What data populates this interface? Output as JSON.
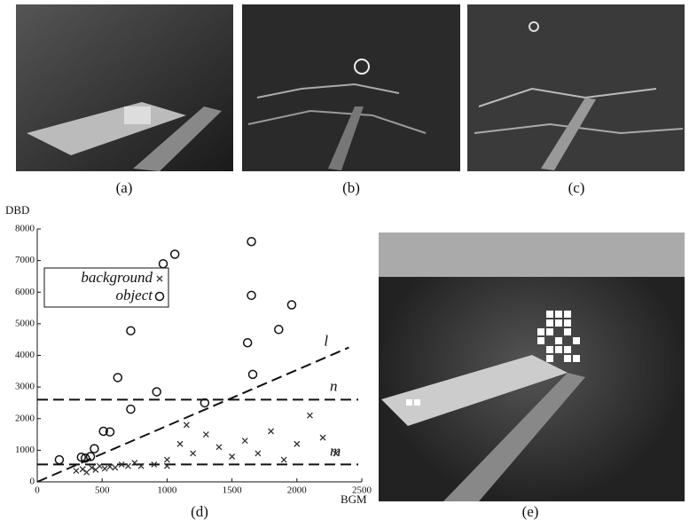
{
  "panels": [
    {
      "label": "(a)"
    },
    {
      "label": "(b)"
    },
    {
      "label": "(c)"
    },
    {
      "label": "(e)"
    }
  ],
  "chart_data": {
    "type": "scatter",
    "caption": "(d)",
    "x_label": "BGM",
    "y_label": "DBD",
    "xlim": [
      0,
      2500
    ],
    "xticks": [
      0,
      500,
      1000,
      1500,
      2000,
      2500
    ],
    "ylim": [
      0,
      8000
    ],
    "yticks": [
      0,
      1000,
      2000,
      3000,
      4000,
      5000,
      6000,
      7000,
      8000
    ],
    "series": [
      {
        "name": "background",
        "marker": "x",
        "color": "#333333",
        "x": [
          300,
          350,
          380,
          420,
          450,
          480,
          520,
          560,
          600,
          650,
          700,
          750,
          800,
          900,
          1000,
          1100,
          1150,
          1200,
          1300,
          1400,
          1500,
          1600,
          1700,
          1800,
          1900,
          2000,
          2100,
          2200,
          2300,
          1000
        ],
        "values": [
          350,
          400,
          300,
          450,
          380,
          500,
          420,
          480,
          450,
          550,
          500,
          600,
          500,
          550,
          700,
          1200,
          1800,
          900,
          1500,
          1100,
          800,
          1300,
          900,
          1600,
          700,
          1200,
          2100,
          1400,
          900,
          500
        ]
      },
      {
        "name": "object",
        "marker": "o",
        "color": "#111111",
        "x": [
          170,
          340,
          370,
          410,
          440,
          510,
          560,
          620,
          720,
          720,
          920,
          970,
          1060,
          1290,
          1620,
          1650,
          1650,
          1660,
          1860,
          1960
        ],
        "values": [
          700,
          780,
          750,
          800,
          1050,
          1600,
          1580,
          3300,
          4780,
          2300,
          2850,
          6900,
          7200,
          2500,
          4400,
          7600,
          5900,
          3400,
          4820,
          5600
        ]
      }
    ],
    "reference_lines": [
      {
        "label": "n",
        "value": 2600
      },
      {
        "label": "m",
        "value": 550
      }
    ],
    "diagonal": {
      "label": "l",
      "x": [
        0,
        2400
      ],
      "values": [
        0,
        4250
      ]
    }
  }
}
